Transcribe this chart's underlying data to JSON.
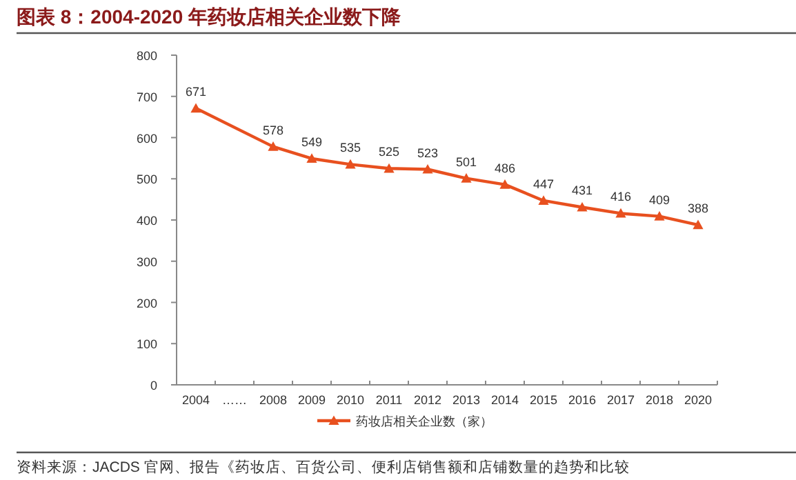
{
  "chart_data": {
    "type": "line",
    "title": "图表 8：2004-2020 年药妆店相关企业数下降",
    "categories": [
      "2004",
      "……",
      "2008",
      "2009",
      "2010",
      "2011",
      "2012",
      "2013",
      "2014",
      "2015",
      "2016",
      "2017",
      "2018",
      "2020"
    ],
    "series": [
      {
        "name": "药妆店相关企业数（家）",
        "color": "#e8501f",
        "values": [
          671,
          null,
          578,
          549,
          535,
          525,
          523,
          501,
          486,
          447,
          431,
          416,
          409,
          388
        ]
      }
    ],
    "ylim": [
      0,
      800
    ],
    "yticks": [
      0,
      100,
      200,
      300,
      400,
      500,
      600,
      700,
      800
    ],
    "data_labels": true,
    "marker": "triangle",
    "line_style": "solid",
    "grid": false,
    "legend": "bottom",
    "annotations": [
      "资料来源：JACDS 官网、报告《药妆店、百货公司、便利店销售额和店铺数量的趋势和比较"
    ]
  }
}
